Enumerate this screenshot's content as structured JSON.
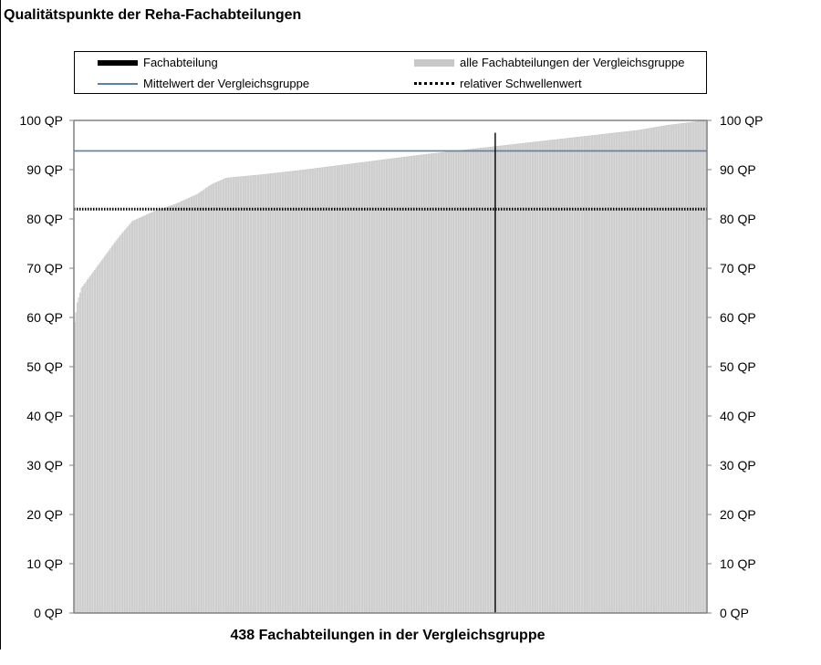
{
  "chart_data": {
    "type": "bar",
    "title": "Qualitätspunkte der Reha-Fachabteilungen",
    "xlabel": "438 Fachabteilungen in der Vergleichsgruppe",
    "ylabel": "",
    "ylim": [
      0,
      100
    ],
    "yticks": [
      "0 QP",
      "10 QP",
      "20 QP",
      "30 QP",
      "40 QP",
      "50 QP",
      "60 QP",
      "70 QP",
      "80 QP",
      "90 QP",
      "100 QP"
    ],
    "n_departments": 438,
    "legend_placement": "top",
    "legend": {
      "fachabteilung": "Fachabteilung",
      "alle": "alle Fachabteilungen der Vergleichsgruppe",
      "mittelwert": "Mittelwert der Vergleichsgruppe",
      "schwelle": "relativer Schwellenwert"
    },
    "distribution_keypoints": [
      [
        0,
        59
      ],
      [
        2,
        63
      ],
      [
        5,
        66
      ],
      [
        10,
        68
      ],
      [
        20,
        72
      ],
      [
        30,
        76
      ],
      [
        40,
        79.5
      ],
      [
        55,
        81.5
      ],
      [
        70,
        83
      ],
      [
        85,
        85
      ],
      [
        95,
        87
      ],
      [
        105,
        88.3
      ],
      [
        130,
        89
      ],
      [
        160,
        90
      ],
      [
        200,
        91.5
      ],
      [
        240,
        93
      ],
      [
        270,
        94
      ],
      [
        300,
        95
      ],
      [
        330,
        96
      ],
      [
        360,
        97
      ],
      [
        390,
        98
      ],
      [
        410,
        99
      ],
      [
        437,
        100
      ]
    ],
    "mean_value": 93.8,
    "threshold_value": 82,
    "highlight_index": 291,
    "highlight_value": 97.5,
    "grid": false,
    "colors": {
      "bars": "#d9d9d9",
      "bar_edge": "#bdbdbd",
      "mean": "#5b7fa6",
      "highlight": "#000000",
      "threshold": "#000000"
    }
  }
}
